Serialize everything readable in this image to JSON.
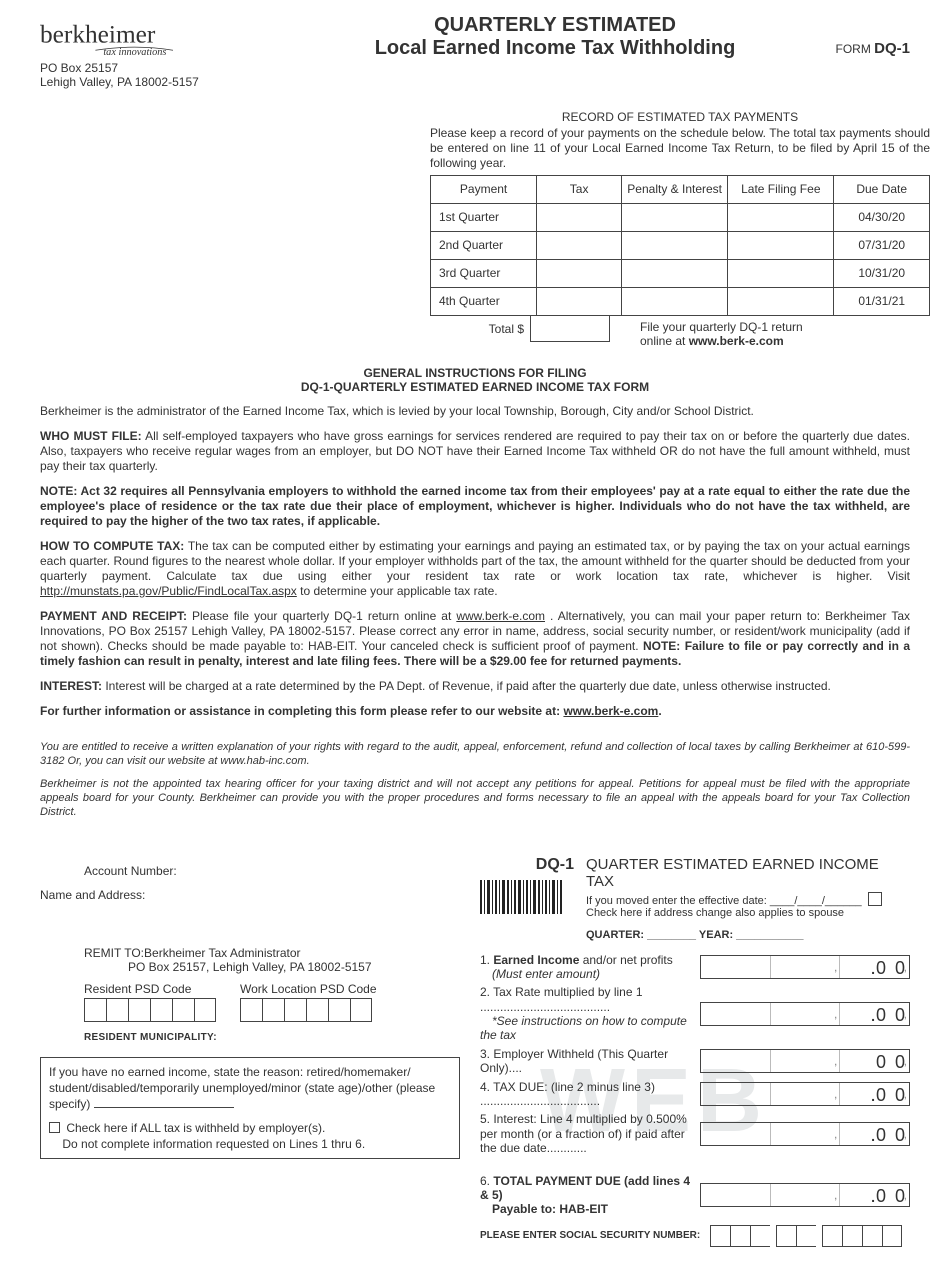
{
  "logo": {
    "name": "berkheimer",
    "tagline": "tax innovations",
    "addr1": "PO Box 25157",
    "addr2": "Lehigh Valley, PA 18002-5157"
  },
  "title": {
    "line1": "QUARTERLY ESTIMATED",
    "line2": "Local Earned Income Tax Withholding"
  },
  "form_id": {
    "prefix": "FORM",
    "code": "DQ-1"
  },
  "record": {
    "heading": "RECORD OF ESTIMATED TAX PAYMENTS",
    "note": "Please keep a record of your payments on the schedule below.  The total tax payments should be entered on line 11 of your Local Earned Income Tax Return, to be filed by April 15 of the following year.",
    "columns": [
      "Payment",
      "Tax",
      "Penalty & Interest",
      "Late Filing Fee",
      "Due Date"
    ],
    "rows": [
      {
        "label": "1st Quarter",
        "due": "04/30/20"
      },
      {
        "label": "2nd Quarter",
        "due": "07/31/20"
      },
      {
        "label": "3rd Quarter",
        "due": "10/31/20"
      },
      {
        "label": "4th Quarter",
        "due": "01/31/21"
      }
    ],
    "total_label": "Total  $",
    "file_note_a": "File your quarterly DQ-1 return",
    "file_note_b": "online at ",
    "file_note_url": "www.berk-e.com"
  },
  "instructions": {
    "title1": "GENERAL INSTRUCTIONS FOR FILING",
    "title2": "DQ-1-QUARTERLY ESTIMATED EARNED INCOME TAX FORM",
    "p_intro": "Berkheimer is the administrator of the Earned Income Tax, which is levied by your local Township, Borough, City and/or School District.",
    "who_label": "WHO MUST FILE:",
    "who_text": " All self-employed taxpayers who have gross earnings for services rendered are required to pay their tax on or before the quarterly due dates. Also, taxpayers who receive regular wages from an employer, but DO NOT have their Earned Income Tax withheld OR do not have the full amount withheld, must pay their tax quarterly.",
    "note_text": "NOTE:  Act 32 requires all Pennsylvania employers to withhold the earned income tax from their employees' pay at a rate equal to either the rate due the employee's place of residence or the tax rate due their place of employment, whichever is higher.  Individuals who do not have the tax withheld, are required to pay the higher of the two tax rates, if applicable.",
    "how_label": "HOW TO COMPUTE TAX:",
    "how_text": " The tax can be computed either by estimating your earnings and paying an estimated tax, or by paying the tax on your actual earnings each quarter.   Round figures to the nearest whole dollar.  If your employer withholds part of the tax, the amount withheld for the quarter should be deducted from your quarterly payment.  Calculate tax due using either your resident tax rate or work location tax rate, whichever is higher.  Visit ",
    "how_url": "http://munstats.pa.gov/Public/FindLocalTax.aspx",
    "how_tail": " to determine your applicable tax rate.",
    "pay_label": "PAYMENT AND RECEIPT:",
    "pay_text_a": "  Please file your quarterly DQ-1 return online at ",
    "pay_url": "www.berk-e.com",
    "pay_text_b": " .  Alternatively, you can mail your paper return to: Berkheimer Tax Innovations, PO Box 25157 Lehigh Valley, PA 18002-5157. Please correct any error in name, address, social security number, or resident/work municipality (add if not shown).  Checks should be made payable to: HAB-EIT.   Your canceled check is sufficient proof of payment.  ",
    "pay_bold": "NOTE: Failure to file or pay correctly and in a timely fashion can result in penalty, interest and late filing fees.  There will be a $29.00 fee for returned payments.",
    "int_label": "INTEREST:",
    "int_text": " Interest will be charged at a rate determined by the PA Dept. of Revenue, if paid after the quarterly due date, unless otherwise instructed.",
    "further": "For further information or assistance in completing this form please refer to our website at: ",
    "further_url": "www.berk-e.com",
    "rights": "You are entitled to receive a written explanation of your rights with regard to the audit, appeal, enforcement, refund and collection of local taxes by calling Berkheimer at 610-599-3182  Or, you can visit our website at www.hab-inc.com.",
    "appeals": "Berkheimer is not the appointed tax hearing officer for your taxing district and will not accept any petitions for appeal.  Petitions for appeal must be filed with the appropriate appeals board for your County. Berkheimer can provide you with the proper procedures and forms necessary to file an appeal with the appeals board for your Tax Collection District."
  },
  "voucher": {
    "acct_label": "Account Number:",
    "name_label": "Name and Address:",
    "remit_label": "REMIT TO:",
    "remit_name": "Berkheimer Tax Administrator",
    "remit_addr": "PO Box 25157, Lehigh Valley, PA 18002-5157",
    "res_psd_label": "Resident PSD Code",
    "work_psd_label": "Work Location PSD Code",
    "psd_cells": 6,
    "res_muni_label": "RESIDENT MUNICIPALITY:",
    "reason_text": "If you have no earned income, state the reason: retired/homemaker/ student/disabled/temporarily unemployed/minor (state age)/other (please specify)",
    "all_withheld_a": "Check here if ALL tax is withheld by employer(s).",
    "all_withheld_b": "Do not complete information requested on Lines 1 thru 6.",
    "dq1": "DQ-1",
    "qeit": "QUARTER ESTIMATED EARNED INCOME TAX",
    "moved": "If you moved enter the effective date: ____/____/______",
    "spouse": "Check here if address change also applies to spouse",
    "quarter_label": "QUARTER: ________   YEAR: ___________",
    "lines": [
      {
        "n": "1.",
        "text": " Earned Income and/or net profits",
        "sub": "(Must enter amount)",
        "bold_lead": "Earned Income",
        "dot": true
      },
      {
        "n": "2.",
        "text": " Tax Rate multiplied by line 1 .......................................",
        "sub": "*See instructions on how to compute the tax",
        "dot": true
      },
      {
        "n": "3.",
        "text": " Employer Withheld (This Quarter Only)....",
        "dot": false
      },
      {
        "n": "4.",
        "text": " TAX DUE: (line 2 minus line 3) ....................................",
        "dot": true
      },
      {
        "n": "5.",
        "text": " Interest: Line 4 multiplied by  0.500% per month (or a fraction of) if paid after the due date............",
        "dot": true
      },
      {
        "n": "6.",
        "text": " TOTAL PAYMENT DUE (add lines 4 & 5)",
        "sub": "Payable to: HAB-EIT",
        "bold_all": true,
        "dot": true
      }
    ],
    "ssn_label": "PLEASE ENTER SOCIAL SECURITY NUMBER:",
    "watermark": "WEB"
  },
  "colors": {
    "text": "#333333",
    "border": "#444444",
    "watermark": "#e7e9ea"
  }
}
